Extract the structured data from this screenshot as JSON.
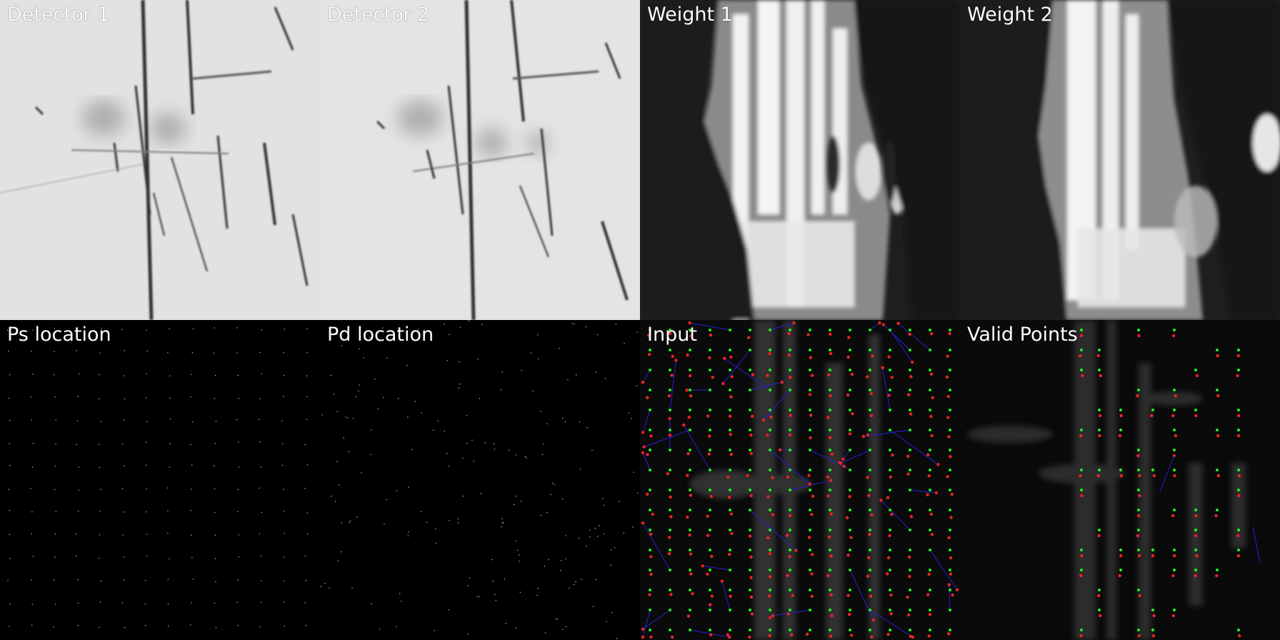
{
  "panels": [
    {
      "id": "detector-1",
      "label": "Detector 1"
    },
    {
      "id": "detector-2",
      "label": "Detector 2"
    },
    {
      "id": "weight-1",
      "label": "Weight 1"
    },
    {
      "id": "weight-2",
      "label": "Weight 2"
    },
    {
      "id": "ps-location",
      "label": "Ps location"
    },
    {
      "id": "pd-location",
      "label": "Pd location"
    },
    {
      "id": "input",
      "label": "Input"
    },
    {
      "id": "valid-points",
      "label": "Valid Points"
    }
  ],
  "colors": {
    "label": "#ffffff",
    "point_source": "#22ee22",
    "point_destination": "#ee2222",
    "match_line": "#2222dd"
  }
}
